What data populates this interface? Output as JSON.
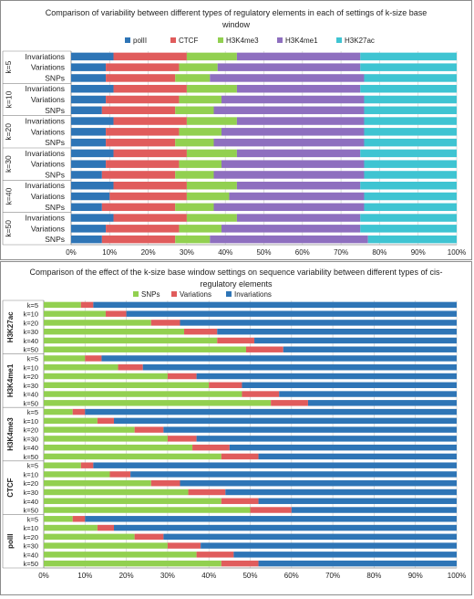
{
  "colors": {
    "polII": "#2e75b6",
    "CTCF": "#e05c5c",
    "H3K4me3": "#92d050",
    "H3K4me1": "#8e6fbf",
    "H3K27ac": "#3fc4d2",
    "SNPs": "#92d050",
    "Variations": "#e05c5c",
    "Invariations": "#2e75b6"
  },
  "chart_data": [
    {
      "type": "bar",
      "orientation": "horizontal",
      "stacked": "percent",
      "title": "Comparison of variability between different types of regulatory elements in each of settings of k-size base window",
      "title_lines": [
        "Comparison of variability between different types of regulatory elements in each of settings of k-size base",
        "window"
      ],
      "legend": [
        "polII",
        "CTCF",
        "H3K4me3",
        "H3K4me1",
        "H3K27ac"
      ],
      "legend_position": "top",
      "groups": [
        "k=5",
        "k=10",
        "k=20",
        "k=30",
        "k=40",
        "k=50"
      ],
      "row_labels": [
        "Invariations",
        "Variations",
        "SNPs"
      ],
      "xlim": [
        0,
        100
      ],
      "xticks": [
        "0%",
        "10%",
        "20%",
        "30%",
        "40%",
        "50%",
        "60%",
        "70%",
        "80%",
        "90%",
        "100%"
      ],
      "grid": true,
      "rows": [
        {
          "group": "k=5",
          "label": "Invariations",
          "values": [
            11,
            19,
            13,
            32,
            25
          ]
        },
        {
          "group": "k=5",
          "label": "Variations",
          "values": [
            9,
            19,
            10,
            37,
            25
          ]
        },
        {
          "group": "k=5",
          "label": "SNPs",
          "values": [
            9,
            18,
            9,
            40,
            24
          ]
        },
        {
          "group": "k=10",
          "label": "Invariations",
          "values": [
            11,
            19,
            13,
            32,
            25
          ]
        },
        {
          "group": "k=10",
          "label": "Variations",
          "values": [
            9,
            19,
            11,
            37,
            24
          ]
        },
        {
          "group": "k=10",
          "label": "SNPs",
          "values": [
            8,
            19,
            10,
            39,
            24
          ]
        },
        {
          "group": "k=20",
          "label": "Invariations",
          "values": [
            11,
            19,
            13,
            33,
            24
          ]
        },
        {
          "group": "k=20",
          "label": "Variations",
          "values": [
            9,
            19,
            11,
            37,
            24
          ]
        },
        {
          "group": "k=20",
          "label": "SNPs",
          "values": [
            9,
            18,
            10,
            39,
            24
          ]
        },
        {
          "group": "k=30",
          "label": "Invariations",
          "values": [
            11,
            19,
            13,
            32,
            25
          ]
        },
        {
          "group": "k=30",
          "label": "Variations",
          "values": [
            9,
            19,
            11,
            37,
            24
          ]
        },
        {
          "group": "k=30",
          "label": "SNPs",
          "values": [
            8,
            19,
            10,
            39,
            24
          ]
        },
        {
          "group": "k=40",
          "label": "Invariations",
          "values": [
            11,
            19,
            13,
            32,
            25
          ]
        },
        {
          "group": "k=40",
          "label": "Variations",
          "values": [
            10,
            20,
            11,
            35,
            24
          ]
        },
        {
          "group": "k=40",
          "label": "SNPs",
          "values": [
            8,
            19,
            10,
            39,
            24
          ]
        },
        {
          "group": "k=50",
          "label": "Invariations",
          "values": [
            11,
            19,
            13,
            32,
            25
          ]
        },
        {
          "group": "k=50",
          "label": "Variations",
          "values": [
            9,
            19,
            11,
            36,
            25
          ]
        },
        {
          "group": "k=50",
          "label": "SNPs",
          "values": [
            8,
            19,
            9,
            41,
            23
          ]
        }
      ]
    },
    {
      "type": "bar",
      "orientation": "horizontal",
      "stacked": "percent",
      "title": "Comparison of the effect of the k-size base window settings on sequence variability between different types of cis-regulatory elements",
      "title_lines": [
        "Comparison of the effect of the k-size base window settings on sequence variability between different types of cis-",
        "regulatory elements"
      ],
      "legend": [
        "SNPs",
        "Variations",
        "Invariations"
      ],
      "legend_position": "top",
      "groups": [
        "H3K27ac",
        "H3K4me1",
        "H3K4me3",
        "CTCF",
        "polII"
      ],
      "row_labels": [
        "k=5",
        "k=10",
        "k=20",
        "k=30",
        "k=40",
        "k=50"
      ],
      "xlim": [
        0,
        100
      ],
      "xticks": [
        "0%",
        "10%",
        "20%",
        "30%",
        "40%",
        "50%",
        "60%",
        "70%",
        "80%",
        "90%",
        "100%"
      ],
      "grid": true,
      "rows": [
        {
          "group": "H3K27ac",
          "label": "k=5",
          "values": [
            9,
            3,
            88
          ]
        },
        {
          "group": "H3K27ac",
          "label": "k=10",
          "values": [
            15,
            5,
            80
          ]
        },
        {
          "group": "H3K27ac",
          "label": "k=20",
          "values": [
            26,
            7,
            67
          ]
        },
        {
          "group": "H3K27ac",
          "label": "k=30",
          "values": [
            34,
            8,
            58
          ]
        },
        {
          "group": "H3K27ac",
          "label": "k=40",
          "values": [
            42,
            9,
            49
          ]
        },
        {
          "group": "H3K27ac",
          "label": "k=50",
          "values": [
            49,
            9,
            42
          ]
        },
        {
          "group": "H3K4me1",
          "label": "k=5",
          "values": [
            10,
            4,
            86
          ]
        },
        {
          "group": "H3K4me1",
          "label": "k=10",
          "values": [
            18,
            6,
            76
          ]
        },
        {
          "group": "H3K4me1",
          "label": "k=20",
          "values": [
            30,
            7,
            63
          ]
        },
        {
          "group": "H3K4me1",
          "label": "k=30",
          "values": [
            40,
            8,
            52
          ]
        },
        {
          "group": "H3K4me1",
          "label": "k=40",
          "values": [
            48,
            9,
            43
          ]
        },
        {
          "group": "H3K4me1",
          "label": "k=50",
          "values": [
            55,
            9,
            36
          ]
        },
        {
          "group": "H3K4me3",
          "label": "k=5",
          "values": [
            7,
            3,
            90
          ]
        },
        {
          "group": "H3K4me3",
          "label": "k=10",
          "values": [
            13,
            4,
            83
          ]
        },
        {
          "group": "H3K4me3",
          "label": "k=20",
          "values": [
            22,
            7,
            71
          ]
        },
        {
          "group": "H3K4me3",
          "label": "k=30",
          "values": [
            30,
            7,
            63
          ]
        },
        {
          "group": "H3K4me3",
          "label": "k=40",
          "values": [
            36,
            9,
            55
          ]
        },
        {
          "group": "H3K4me3",
          "label": "k=50",
          "values": [
            43,
            9,
            48
          ]
        },
        {
          "group": "CTCF",
          "label": "k=5",
          "values": [
            9,
            3,
            88
          ]
        },
        {
          "group": "CTCF",
          "label": "k=10",
          "values": [
            16,
            5,
            79
          ]
        },
        {
          "group": "CTCF",
          "label": "k=20",
          "values": [
            26,
            7,
            67
          ]
        },
        {
          "group": "CTCF",
          "label": "k=30",
          "values": [
            35,
            9,
            56
          ]
        },
        {
          "group": "CTCF",
          "label": "k=40",
          "values": [
            43,
            9,
            48
          ]
        },
        {
          "group": "CTCF",
          "label": "k=50",
          "values": [
            50,
            10,
            40
          ]
        },
        {
          "group": "polII",
          "label": "k=5",
          "values": [
            7,
            3,
            90
          ]
        },
        {
          "group": "polII",
          "label": "k=10",
          "values": [
            13,
            4,
            83
          ]
        },
        {
          "group": "polII",
          "label": "k=20",
          "values": [
            22,
            7,
            71
          ]
        },
        {
          "group": "polII",
          "label": "k=30",
          "values": [
            30,
            8,
            62
          ]
        },
        {
          "group": "polII",
          "label": "k=40",
          "values": [
            37,
            9,
            54
          ]
        },
        {
          "group": "polII",
          "label": "k=50",
          "values": [
            43,
            9,
            48
          ]
        }
      ]
    }
  ]
}
